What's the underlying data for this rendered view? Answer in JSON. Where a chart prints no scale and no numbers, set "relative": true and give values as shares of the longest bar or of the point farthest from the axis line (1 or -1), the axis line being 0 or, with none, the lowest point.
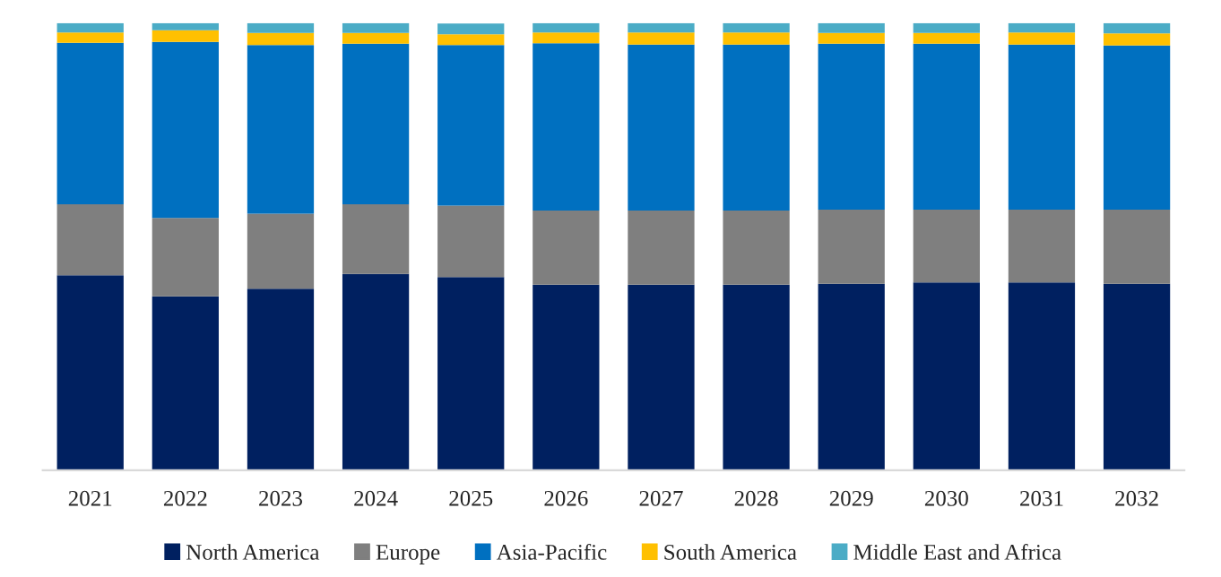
{
  "chart_data": {
    "type": "bar",
    "stacked": true,
    "relative": true,
    "legend": "bottom",
    "grid": false,
    "categories": [
      "2021",
      "2022",
      "2023",
      "2024",
      "2025",
      "2026",
      "2027",
      "2028",
      "2029",
      "2030",
      "2031",
      "2032"
    ],
    "series": [
      {
        "name": "North America",
        "color": "#002060",
        "values": [
          0.436,
          0.389,
          0.406,
          0.439,
          0.432,
          0.415,
          0.415,
          0.415,
          0.417,
          0.42,
          0.42,
          0.417
        ]
      },
      {
        "name": "Europe",
        "color": "#7f7f7f",
        "values": [
          0.159,
          0.175,
          0.168,
          0.156,
          0.16,
          0.166,
          0.166,
          0.166,
          0.166,
          0.163,
          0.163,
          0.166
        ]
      },
      {
        "name": "Asia-Pacific",
        "color": "#0070c0",
        "values": [
          0.361,
          0.394,
          0.377,
          0.359,
          0.359,
          0.374,
          0.371,
          0.371,
          0.371,
          0.371,
          0.369,
          0.367
        ]
      },
      {
        "name": "South America",
        "color": "#ffc000",
        "values": [
          0.023,
          0.026,
          0.027,
          0.024,
          0.024,
          0.024,
          0.027,
          0.027,
          0.024,
          0.024,
          0.027,
          0.027
        ]
      },
      {
        "name": "Middle East and Africa",
        "color": "#4bacc6",
        "values": [
          0.021,
          0.016,
          0.022,
          0.022,
          0.024,
          0.021,
          0.021,
          0.021,
          0.022,
          0.022,
          0.021,
          0.023
        ]
      }
    ]
  }
}
